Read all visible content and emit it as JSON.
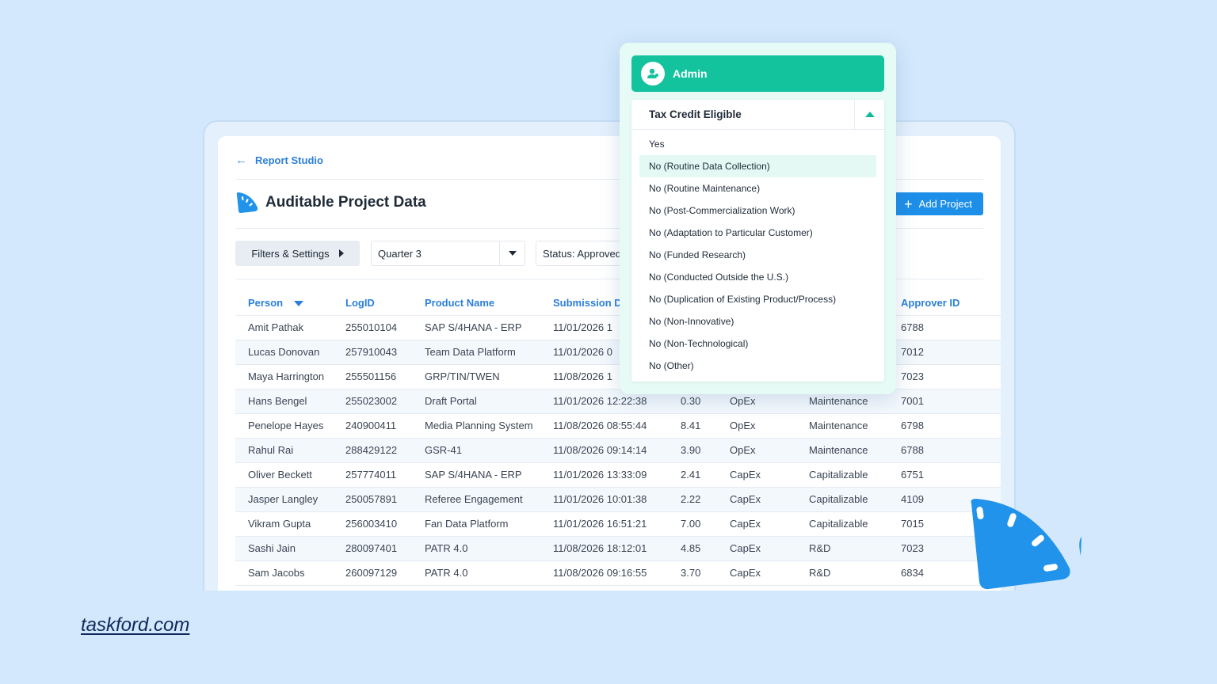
{
  "header": {
    "back_label": "Report Studio",
    "page_title": "Auditable Project Data",
    "add_button_label": "Add Project"
  },
  "filters": {
    "filters_button_label": "Filters & Settings",
    "quarter_value": "Quarter 3",
    "status_value": "Status: Approved"
  },
  "table": {
    "columns": [
      "Person",
      "LogID",
      "Product Name",
      "Submission Date",
      "",
      "",
      "",
      "Approver ID"
    ],
    "rows": [
      [
        "Amit Pathak",
        "255010104",
        "SAP S/4HANA - ERP",
        "11/01/2026 1",
        "",
        "",
        "",
        "6788"
      ],
      [
        "Lucas Donovan",
        "257910043",
        "Team Data Platform",
        "11/01/2026 0",
        "",
        "",
        "",
        "7012"
      ],
      [
        "Maya Harrington",
        "255501156",
        "GRP/TIN/TWEN",
        "11/08/2026 1",
        "",
        "",
        "",
        "7023"
      ],
      [
        "Hans Bengel",
        "255023002",
        "Draft Portal",
        "11/01/2026 12:22:38",
        "0.30",
        "OpEx",
        "Maintenance",
        "7001"
      ],
      [
        "Penelope Hayes",
        "240900411",
        "Media Planning System",
        "11/08/2026 08:55:44",
        "8.41",
        "OpEx",
        "Maintenance",
        "6798"
      ],
      [
        "Rahul Rai",
        "288429122",
        "GSR-41",
        "11/08/2026 09:14:14",
        "3.90",
        "OpEx",
        "Maintenance",
        "6788"
      ],
      [
        "Oliver Beckett",
        "257774011",
        "SAP S/4HANA - ERP",
        "11/01/2026 13:33:09",
        "2.41",
        "CapEx",
        "Capitalizable",
        "6751"
      ],
      [
        "Jasper Langley",
        "250057891",
        "Referee Engagement",
        "11/01/2026 10:01:38",
        "2.22",
        "CapEx",
        "Capitalizable",
        "4109"
      ],
      [
        "Vikram Gupta",
        "256003410",
        "Fan Data Platform",
        "11/01/2026 16:51:21",
        "7.00",
        "CapEx",
        "Capitalizable",
        "7015"
      ],
      [
        "Sashi Jain",
        "280097401",
        "PATR 4.0",
        "11/08/2026 18:12:01",
        "4.85",
        "CapEx",
        "R&D",
        "7023"
      ],
      [
        "Sam Jacobs",
        "260097129",
        "PATR 4.0",
        "11/08/2026 09:16:55",
        "3.70",
        "CapEx",
        "R&D",
        "6834"
      ]
    ]
  },
  "popup": {
    "role_label": "Admin",
    "dropdown_label": "Tax Credit Eligible",
    "highlighted_index": 1,
    "options": [
      "Yes",
      "No (Routine Data Collection)",
      "No (Routine Maintenance)",
      "No (Post-Commercialization Work)",
      "No (Adaptation to Particular Customer)",
      "No (Funded Research)",
      "No (Conducted Outside the U.S.)",
      "No (Duplication of Existing Product/Process)",
      "No (Non-Innovative)",
      "No (Non-Technological)",
      "No (Other)"
    ]
  },
  "footer": {
    "brand": "taskford.com"
  },
  "colors": {
    "accent": "#1e8fe8",
    "admin": "#13c39e",
    "background": "#d3e8fc"
  }
}
